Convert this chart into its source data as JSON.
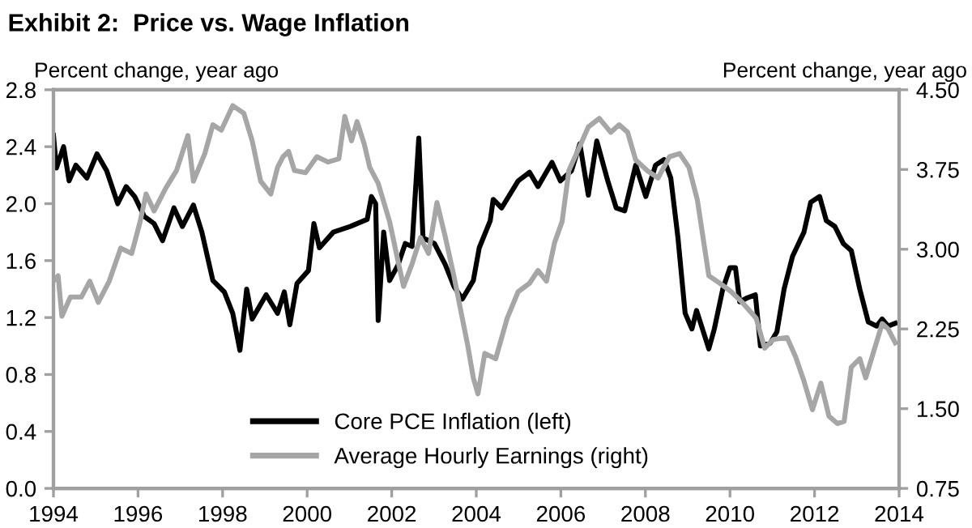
{
  "chart_data": {
    "type": "line",
    "title": "Exhibit 2:  Price vs. Wage Inflation",
    "ylabel": "Percent change, year ago",
    "y2label": "Percent change, year ago",
    "xlim": [
      1994,
      2014
    ],
    "xticks": [
      1994,
      1996,
      1998,
      2000,
      2002,
      2004,
      2006,
      2008,
      2010,
      2012,
      2014
    ],
    "ylim": [
      0,
      2.8
    ],
    "yticks": [
      {
        "value": 0,
        "label": "0.0"
      },
      {
        "value": 0.4,
        "label": "0.4"
      },
      {
        "value": 0.8,
        "label": "0.8"
      },
      {
        "value": 1.2,
        "label": "1.2"
      },
      {
        "value": 1.6,
        "label": "1.6"
      },
      {
        "value": 2.0,
        "label": "2.0"
      },
      {
        "value": 2.4,
        "label": "2.4"
      },
      {
        "value": 2.8,
        "label": "2.8"
      }
    ],
    "y2lim": [
      0.75,
      4.5
    ],
    "y2ticks": [
      0.75,
      {
        "value": 1.5,
        "label": "1.50"
      },
      2.25,
      {
        "value": 3.0,
        "label": "3.00"
      },
      3.75,
      {
        "value": 4.5,
        "label": "4.50"
      }
    ],
    "grid": false,
    "legend": "bottom",
    "line_style": "solid",
    "marker": "none",
    "series": [
      {
        "name": "Core PCE Inflation (left)",
        "color": "#000000",
        "x": [
          1994.0,
          1994.07,
          1994.24,
          1994.37,
          1994.53,
          1994.79,
          1995.03,
          1995.26,
          1995.52,
          1995.72,
          1995.92,
          1996.15,
          1996.38,
          1996.58,
          1996.85,
          1997.05,
          1997.31,
          1997.51,
          1997.77,
          1998.04,
          1998.24,
          1998.41,
          1998.57,
          1998.7,
          1999.03,
          1999.3,
          1999.46,
          1999.59,
          1999.76,
          2000.03,
          2000.16,
          2000.29,
          2000.62,
          2001.02,
          2001.42,
          2001.52,
          2001.62,
          2001.68,
          2001.81,
          2001.95,
          2002.15,
          2002.32,
          2002.48,
          2002.64,
          2002.74,
          2003.01,
          2003.27,
          2003.47,
          2003.67,
          2003.93,
          2004.07,
          2004.33,
          2004.4,
          2004.6,
          2004.99,
          2005.26,
          2005.46,
          2005.79,
          2005.99,
          2006.25,
          2006.45,
          2006.65,
          2006.85,
          2007.11,
          2007.31,
          2007.51,
          2007.77,
          2008.01,
          2008.24,
          2008.44,
          2008.6,
          2008.77,
          2008.94,
          2009.1,
          2009.21,
          2009.5,
          2009.63,
          2009.83,
          2010.0,
          2010.13,
          2010.23,
          2010.42,
          2010.6,
          2010.72,
          2010.95,
          2011.11,
          2011.28,
          2011.48,
          2011.75,
          2011.91,
          2012.12,
          2012.28,
          2012.48,
          2012.68,
          2012.87,
          2013.07,
          2013.27,
          2013.47,
          2013.6,
          2013.74,
          2013.91
        ],
        "values": [
          2.48,
          2.25,
          2.4,
          2.16,
          2.27,
          2.18,
          2.35,
          2.23,
          2.0,
          2.12,
          2.05,
          1.91,
          1.86,
          1.74,
          1.97,
          1.84,
          1.99,
          1.8,
          1.46,
          1.38,
          1.23,
          0.97,
          1.4,
          1.19,
          1.36,
          1.23,
          1.38,
          1.15,
          1.44,
          1.53,
          1.86,
          1.69,
          1.8,
          1.84,
          1.89,
          2.05,
          2.0,
          1.18,
          1.8,
          1.46,
          1.57,
          1.72,
          1.7,
          2.46,
          1.76,
          1.72,
          1.57,
          1.42,
          1.33,
          1.46,
          1.69,
          1.88,
          2.03,
          1.97,
          2.16,
          2.22,
          2.12,
          2.29,
          2.16,
          2.23,
          2.42,
          2.06,
          2.44,
          2.16,
          1.97,
          1.95,
          2.27,
          2.05,
          2.27,
          2.31,
          2.18,
          1.76,
          1.23,
          1.12,
          1.25,
          0.98,
          1.12,
          1.4,
          1.55,
          1.55,
          1.31,
          1.34,
          1.36,
          1.0,
          1.02,
          1.1,
          1.4,
          1.63,
          1.8,
          2.01,
          2.05,
          1.88,
          1.84,
          1.72,
          1.67,
          1.4,
          1.17,
          1.14,
          1.19,
          1.14,
          1.16
        ]
      },
      {
        "name": "Average Hourly Earnings (right)",
        "color": "#a6a6a6",
        "axis": "y2",
        "x": [
          1994.0,
          1994.11,
          1994.2,
          1994.4,
          1994.66,
          1994.86,
          1995.06,
          1995.32,
          1995.59,
          1995.85,
          1996.05,
          1996.19,
          1996.38,
          1996.65,
          1996.91,
          1997.18,
          1997.31,
          1997.58,
          1997.77,
          1997.97,
          1998.24,
          1998.5,
          1998.7,
          1998.9,
          1999.14,
          1999.3,
          1999.43,
          1999.56,
          1999.7,
          1999.96,
          2000.23,
          2000.49,
          2000.75,
          2000.89,
          2001.05,
          2001.18,
          2001.35,
          2001.48,
          2001.68,
          2001.95,
          2002.11,
          2002.28,
          2002.48,
          2002.68,
          2002.87,
          2003.07,
          2003.27,
          2003.47,
          2003.67,
          2003.8,
          2003.93,
          2004.04,
          2004.2,
          2004.46,
          2004.73,
          2004.99,
          2005.26,
          2005.46,
          2005.66,
          2005.85,
          2006.03,
          2006.19,
          2006.45,
          2006.65,
          2006.91,
          2007.18,
          2007.38,
          2007.58,
          2007.77,
          2008.04,
          2008.3,
          2008.57,
          2008.81,
          2009.03,
          2009.23,
          2009.5,
          2009.76,
          2010.03,
          2010.29,
          2010.62,
          2010.82,
          2011.02,
          2011.35,
          2011.55,
          2011.75,
          2011.95,
          2012.15,
          2012.34,
          2012.54,
          2012.7,
          2012.87,
          2013.07,
          2013.21,
          2013.4,
          2013.6,
          2013.74,
          2013.91
        ],
        "values": [
          2.7,
          2.75,
          2.37,
          2.55,
          2.55,
          2.7,
          2.5,
          2.7,
          3.01,
          2.96,
          3.26,
          3.52,
          3.36,
          3.57,
          3.74,
          4.07,
          3.64,
          3.9,
          4.17,
          4.12,
          4.35,
          4.28,
          4.02,
          3.64,
          3.52,
          3.77,
          3.87,
          3.92,
          3.74,
          3.72,
          3.87,
          3.82,
          3.85,
          4.25,
          4.02,
          4.2,
          3.99,
          3.77,
          3.62,
          3.26,
          2.96,
          2.65,
          2.86,
          3.11,
          2.96,
          3.44,
          3.11,
          2.75,
          2.35,
          2.09,
          1.79,
          1.64,
          2.02,
          1.97,
          2.35,
          2.6,
          2.68,
          2.8,
          2.7,
          3.06,
          3.26,
          3.74,
          3.97,
          4.15,
          4.23,
          4.1,
          4.17,
          4.1,
          3.84,
          3.74,
          3.67,
          3.87,
          3.9,
          3.77,
          3.46,
          2.75,
          2.68,
          2.6,
          2.5,
          2.35,
          2.07,
          2.15,
          2.17,
          1.99,
          1.76,
          1.49,
          1.74,
          1.43,
          1.36,
          1.38,
          1.89,
          1.97,
          1.79,
          2.04,
          2.3,
          2.25,
          2.12
        ]
      }
    ]
  }
}
